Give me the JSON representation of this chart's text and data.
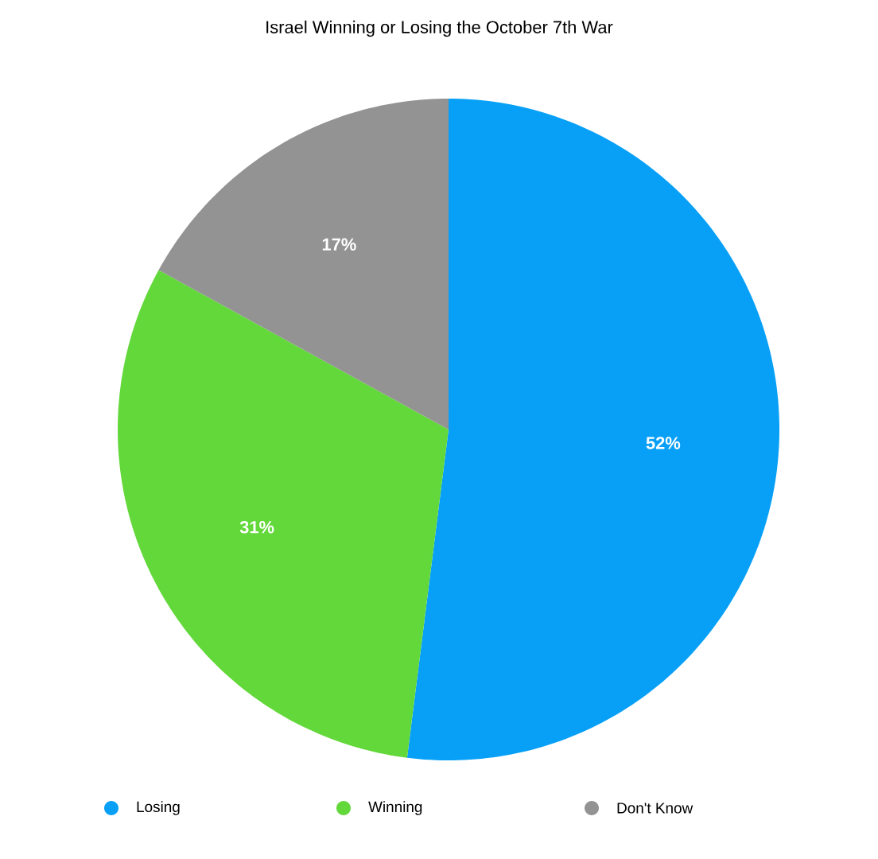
{
  "chart_data": {
    "type": "pie",
    "title": "Israel Winning or Losing the October 7th War",
    "categories": [
      "Losing",
      "Winning",
      "Don't Know"
    ],
    "values": [
      52,
      31,
      17
    ],
    "value_labels": [
      "52%",
      "31%",
      "17%"
    ],
    "colors": [
      "#08a0f6",
      "#62d83a",
      "#939393"
    ],
    "legend": "bottom"
  }
}
